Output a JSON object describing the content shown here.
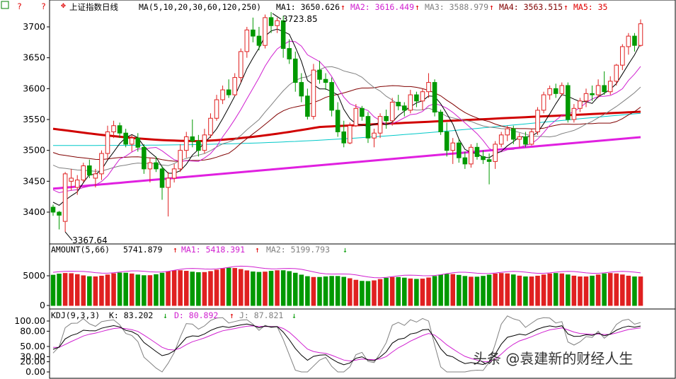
{
  "main_panel": {
    "title": "上证指数日线",
    "ma_params": "MA(5,10,20,30,60,120,250)",
    "ma_readouts": [
      {
        "label": "MA1: 3650.626",
        "arrow": "↑",
        "color": "#000000"
      },
      {
        "label": "MA2: 3616.449",
        "arrow": "↑",
        "color": "#d020d0"
      },
      {
        "label": "MA3: 3588.979",
        "arrow": "↑",
        "color": "#808080"
      },
      {
        "label": "MA4: 3563.515",
        "arrow": "↑",
        "color": "#800000"
      },
      {
        "label": "MA5: 35",
        "arrow": "",
        "color": "#e00000"
      }
    ],
    "high_label": "3723.85",
    "low_label": "3367.64",
    "watermark": "头条 @袁建新的财经人生"
  },
  "amount_panel": {
    "params": "AMOUNT(5,66)",
    "value": "5741.879",
    "ma1": "MA1: 5418.391",
    "ma2": "MA2: 5199.793",
    "arrows": [
      "↑",
      "↑",
      "↓"
    ]
  },
  "kdj_panel": {
    "params": "KDJ(9,3,3)",
    "k": "K: 83.202",
    "d": "D: 80.892",
    "j": "J: 87.821",
    "arrows": [
      "↓",
      "↑",
      "↓"
    ]
  },
  "colors": {
    "up": "#e02020",
    "down": "#009900",
    "ma5": "#000000",
    "ma10": "#d020d0",
    "ma20": "#808080",
    "ma30": "#800000",
    "ma60": "#d00000",
    "ma120": "#00c8c8",
    "ma250": "#e020e0"
  },
  "chart_data": [
    {
      "type": "candlestick",
      "title": "上证指数日线",
      "y_ticks": [
        3400,
        3450,
        3500,
        3550,
        3600,
        3650,
        3700
      ],
      "ylim": [
        3355,
        3740
      ],
      "ohlc": [
        [
          3408,
          3412,
          3394,
          3400
        ],
        [
          3400,
          3402,
          3372,
          3395
        ],
        [
          3385,
          3465,
          3368,
          3462
        ],
        [
          3450,
          3470,
          3435,
          3455
        ],
        [
          3440,
          3460,
          3428,
          3452
        ],
        [
          3452,
          3480,
          3448,
          3475
        ],
        [
          3475,
          3485,
          3455,
          3460
        ],
        [
          3455,
          3470,
          3440,
          3462
        ],
        [
          3462,
          3500,
          3452,
          3495
        ],
        [
          3495,
          3540,
          3485,
          3530
        ],
        [
          3530,
          3548,
          3520,
          3540
        ],
        [
          3540,
          3545,
          3520,
          3528
        ],
        [
          3528,
          3535,
          3505,
          3510
        ],
        [
          3510,
          3525,
          3498,
          3520
        ],
        [
          3520,
          3528,
          3498,
          3505
        ],
        [
          3505,
          3510,
          3462,
          3470
        ],
        [
          3470,
          3488,
          3448,
          3480
        ],
        [
          3480,
          3490,
          3465,
          3470
        ],
        [
          3470,
          3475,
          3420,
          3440
        ],
        [
          3440,
          3465,
          3393,
          3455
        ],
        [
          3455,
          3478,
          3448,
          3470
        ],
        [
          3470,
          3510,
          3465,
          3500
        ],
        [
          3500,
          3530,
          3488,
          3522
        ],
        [
          3522,
          3550,
          3505,
          3515
        ],
        [
          3515,
          3525,
          3490,
          3500
        ],
        [
          3500,
          3535,
          3495,
          3525
        ],
        [
          3525,
          3560,
          3520,
          3552
        ],
        [
          3552,
          3590,
          3548,
          3582
        ],
        [
          3582,
          3605,
          3575,
          3598
        ],
        [
          3598,
          3615,
          3585,
          3590
        ],
        [
          3590,
          3625,
          3588,
          3618
        ],
        [
          3618,
          3665,
          3610,
          3660
        ],
        [
          3660,
          3700,
          3650,
          3695
        ],
        [
          3695,
          3715,
          3675,
          3685
        ],
        [
          3685,
          3700,
          3662,
          3670
        ],
        [
          3670,
          3720,
          3665,
          3715
        ],
        [
          3715,
          3724,
          3690,
          3702
        ],
        [
          3702,
          3715,
          3690,
          3710
        ],
        [
          3710,
          3718,
          3650,
          3665
        ],
        [
          3665,
          3680,
          3640,
          3648
        ],
        [
          3648,
          3660,
          3595,
          3610
        ],
        [
          3610,
          3625,
          3578,
          3588
        ],
        [
          3588,
          3600,
          3550,
          3555
        ],
        [
          3555,
          3640,
          3550,
          3630
        ],
        [
          3630,
          3645,
          3608,
          3615
        ],
        [
          3615,
          3625,
          3598,
          3610
        ],
        [
          3610,
          3618,
          3555,
          3565
        ],
        [
          3565,
          3578,
          3522,
          3530
        ],
        [
          3530,
          3548,
          3505,
          3512
        ],
        [
          3512,
          3545,
          3510,
          3540
        ],
        [
          3540,
          3575,
          3538,
          3568
        ],
        [
          3568,
          3572,
          3548,
          3555
        ],
        [
          3555,
          3562,
          3512,
          3520
        ],
        [
          3520,
          3535,
          3505,
          3528
        ],
        [
          3528,
          3560,
          3520,
          3555
        ],
        [
          3555,
          3566,
          3535,
          3548
        ],
        [
          3548,
          3585,
          3540,
          3578
        ],
        [
          3578,
          3590,
          3565,
          3572
        ],
        [
          3572,
          3578,
          3555,
          3565
        ],
        [
          3565,
          3598,
          3560,
          3590
        ],
        [
          3590,
          3595,
          3570,
          3580
        ],
        [
          3580,
          3600,
          3565,
          3595
        ],
        [
          3595,
          3625,
          3585,
          3610
        ],
        [
          3610,
          3615,
          3555,
          3562
        ],
        [
          3562,
          3566,
          3525,
          3530
        ],
        [
          3530,
          3545,
          3490,
          3500
        ],
        [
          3500,
          3520,
          3478,
          3512
        ],
        [
          3512,
          3518,
          3480,
          3488
        ],
        [
          3488,
          3498,
          3470,
          3478
        ],
        [
          3478,
          3510,
          3472,
          3505
        ],
        [
          3505,
          3512,
          3485,
          3490
        ],
        [
          3490,
          3500,
          3478,
          3485
        ],
        [
          3485,
          3495,
          3445,
          3482
        ],
        [
          3482,
          3515,
          3470,
          3510
        ],
        [
          3510,
          3530,
          3505,
          3525
        ],
        [
          3525,
          3540,
          3515,
          3535
        ],
        [
          3535,
          3540,
          3510,
          3518
        ],
        [
          3518,
          3528,
          3505,
          3522
        ],
        [
          3522,
          3530,
          3505,
          3510
        ],
        [
          3510,
          3535,
          3508,
          3530
        ],
        [
          3530,
          3570,
          3525,
          3565
        ],
        [
          3565,
          3595,
          3560,
          3590
        ],
        [
          3590,
          3605,
          3582,
          3600
        ],
        [
          3600,
          3608,
          3585,
          3592
        ],
        [
          3592,
          3610,
          3588,
          3605
        ],
        [
          3605,
          3610,
          3545,
          3550
        ],
        [
          3550,
          3575,
          3545,
          3568
        ],
        [
          3568,
          3585,
          3562,
          3580
        ],
        [
          3580,
          3600,
          3570,
          3592
        ],
        [
          3592,
          3605,
          3580,
          3590
        ],
        [
          3590,
          3615,
          3585,
          3605
        ],
        [
          3605,
          3628,
          3590,
          3595
        ],
        [
          3595,
          3620,
          3590,
          3612
        ],
        [
          3612,
          3640,
          3605,
          3638
        ],
        [
          3638,
          3672,
          3630,
          3668
        ],
        [
          3668,
          3690,
          3655,
          3685
        ],
        [
          3685,
          3690,
          3660,
          3670
        ],
        [
          3670,
          3712,
          3668,
          3705
        ]
      ]
    },
    {
      "type": "bar",
      "title": "AMOUNT(5,66)",
      "y_ticks": [
        0,
        5000
      ],
      "ylim": [
        0,
        8500
      ]
    },
    {
      "type": "line",
      "title": "KDJ(9,3,3)",
      "y_ticks": [
        0.0,
        20.0,
        30.0,
        50.0,
        80.0,
        100.0
      ],
      "ylim": [
        0,
        100
      ]
    }
  ]
}
